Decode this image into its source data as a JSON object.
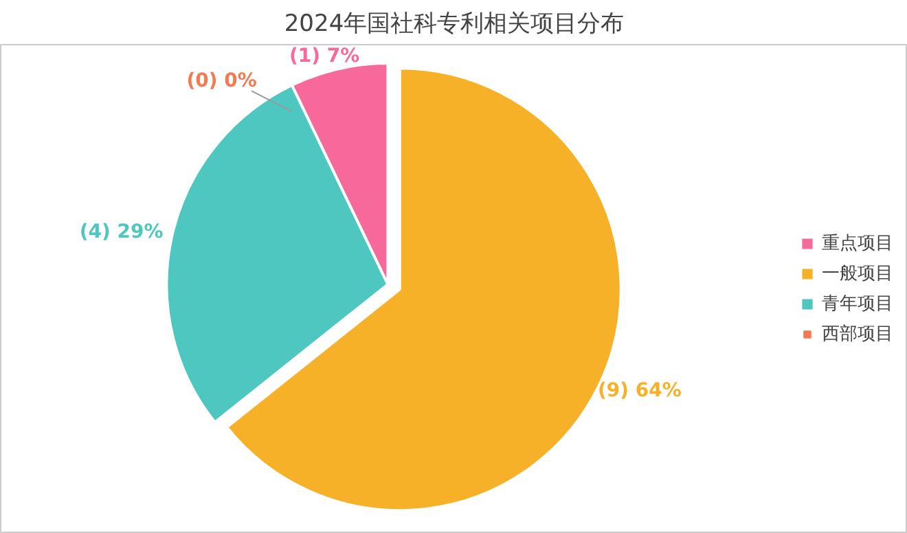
{
  "chart_data": {
    "type": "pie",
    "title": "2024年国社科专利相关项目分布",
    "categories": [
      "重点项目",
      "一般项目",
      "青年项目",
      "西部项目"
    ],
    "values": [
      1,
      9,
      4,
      0
    ],
    "colors": [
      "#f8699b",
      "#f6b128",
      "#4fc7c1",
      "#f47a52"
    ],
    "value_labels": [
      "(1)  7%",
      "(9)  64%",
      "(4)  29%",
      "(0)  0%"
    ],
    "legend": "right"
  }
}
